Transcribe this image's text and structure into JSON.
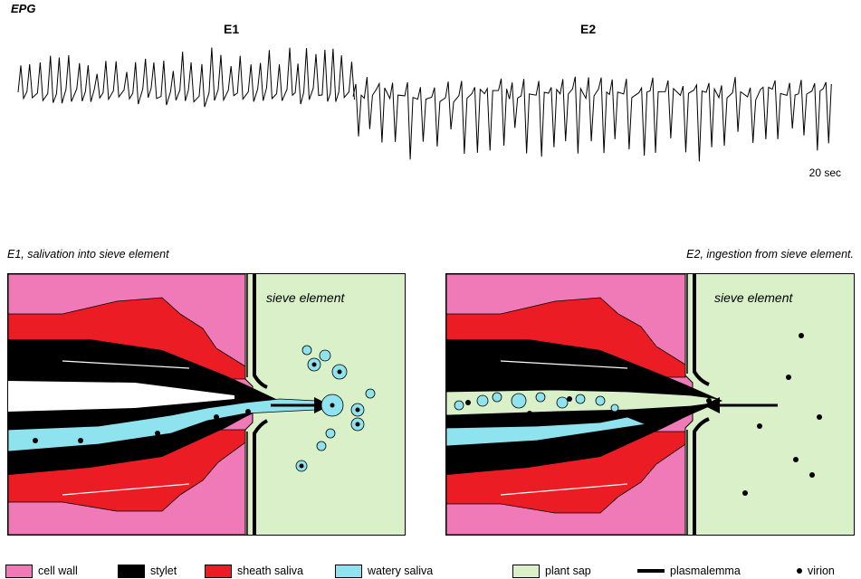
{
  "epg": {
    "label": "EPG",
    "phase_e1": "E1",
    "phase_e2": "E2",
    "scale": "20 sec"
  },
  "panels": {
    "left_caption": "E1,  salivation into sieve element",
    "right_caption": "E2, ingestion from sieve element.",
    "left_label": "sieve element",
    "right_label": "sieve element"
  },
  "legend": {
    "cell_wall": "cell wall",
    "stylet": "stylet",
    "sheath_saliva": "sheath saliva",
    "watery_saliva": "watery saliva",
    "plant_sap": "plant sap",
    "plasmalemma": "plasmalemma",
    "virion": "virion"
  },
  "colors": {
    "cell_wall": "#f07ab8",
    "stylet": "#000000",
    "sheath_saliva": "#ec1c24",
    "watery_saliva": "#8fe3ee",
    "plant_sap": "#d9f0c8",
    "plasmalemma": "#000000",
    "virion": "#000000"
  }
}
